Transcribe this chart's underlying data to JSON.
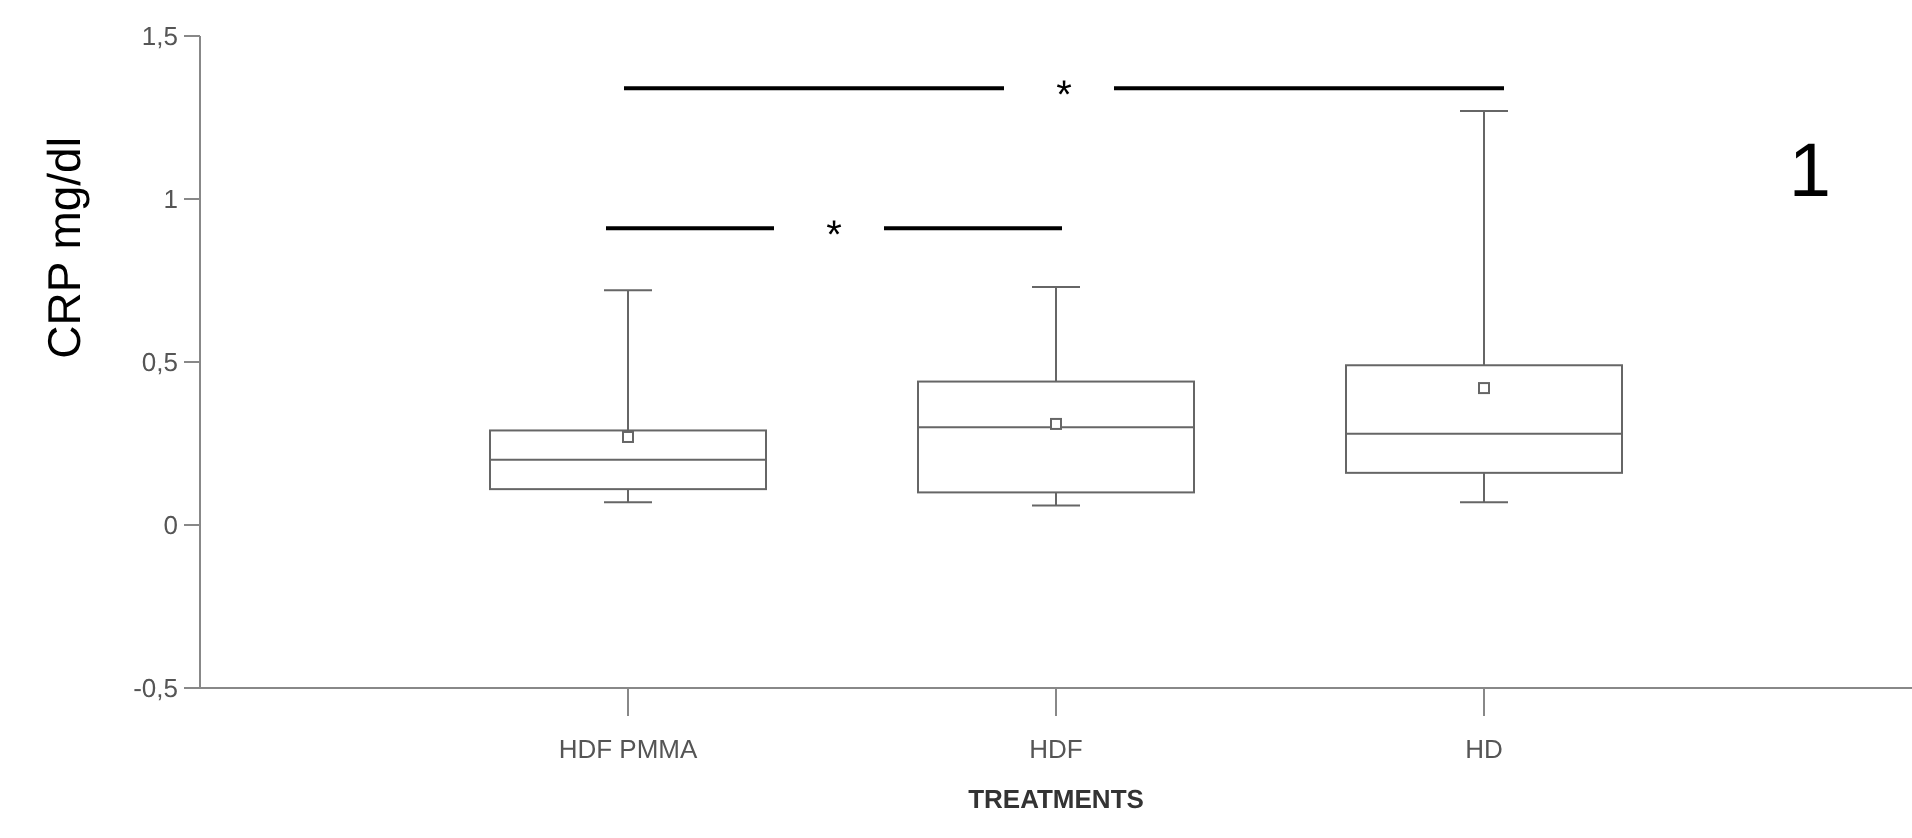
{
  "chart_data": {
    "type": "box",
    "xlabel": "TREATMENTS",
    "ylabel": "CRP mg/dl",
    "categories": [
      "HDF PMMA",
      "HDF",
      "HD"
    ],
    "boxes": [
      {
        "low": 0.07,
        "q1": 0.11,
        "median": 0.2,
        "q3": 0.29,
        "high": 0.72,
        "mean": 0.27
      },
      {
        "low": 0.06,
        "q1": 0.1,
        "median": 0.3,
        "q3": 0.44,
        "high": 0.73,
        "mean": 0.31
      },
      {
        "low": 0.07,
        "q1": 0.16,
        "median": 0.28,
        "q3": 0.49,
        "high": 1.27,
        "mean": 0.42
      }
    ],
    "ylim": [
      -0.5,
      1.5
    ],
    "yticks": [
      {
        "value": -0.5,
        "label": "-0,5"
      },
      0,
      {
        "value": 0.5,
        "label": "0,5"
      },
      1,
      {
        "value": 1.5,
        "label": "1,5"
      }
    ],
    "annotations": [
      "*",
      "*",
      "1"
    ],
    "grid": false
  }
}
